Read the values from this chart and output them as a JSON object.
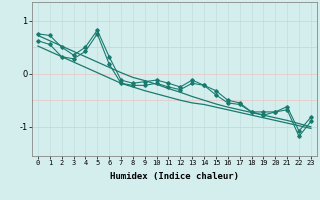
{
  "xlabel": "Humidex (Indice chaleur)",
  "bg_color": "#d4eeee",
  "plot_bg": "#d4eeee",
  "line_color": "#1a7a6e",
  "grid_color_v": "#c0dede",
  "grid_color_h": "#e8c8c8",
  "axis_color": "#888888",
  "xlim": [
    -0.5,
    23.5
  ],
  "ylim": [
    -1.55,
    1.35
  ],
  "yticks": [
    -1,
    0,
    1
  ],
  "xticks": [
    0,
    1,
    2,
    3,
    4,
    5,
    6,
    7,
    8,
    9,
    10,
    11,
    12,
    13,
    14,
    15,
    16,
    17,
    18,
    19,
    20,
    21,
    22,
    23
  ],
  "series1": [
    0.75,
    0.72,
    0.5,
    0.35,
    0.5,
    0.82,
    0.32,
    -0.12,
    -0.18,
    -0.15,
    -0.12,
    -0.18,
    -0.25,
    -0.12,
    -0.22,
    -0.32,
    -0.5,
    -0.55,
    -0.72,
    -0.72,
    -0.72,
    -0.62,
    -1.08,
    -0.82
  ],
  "series2": [
    0.62,
    0.55,
    0.32,
    0.28,
    0.42,
    0.75,
    0.18,
    -0.18,
    -0.22,
    -0.22,
    -0.18,
    -0.25,
    -0.3,
    -0.18,
    -0.22,
    -0.4,
    -0.55,
    -0.58,
    -0.72,
    -0.78,
    -0.72,
    -0.68,
    -1.18,
    -0.9
  ],
  "line1": [
    0.72,
    0.62,
    0.52,
    0.42,
    0.32,
    0.22,
    0.12,
    0.02,
    -0.07,
    -0.13,
    -0.2,
    -0.28,
    -0.35,
    -0.43,
    -0.5,
    -0.57,
    -0.63,
    -0.68,
    -0.73,
    -0.78,
    -0.83,
    -0.88,
    -0.94,
    -1.0
  ],
  "line2": [
    0.52,
    0.42,
    0.32,
    0.22,
    0.12,
    0.02,
    -0.08,
    -0.18,
    -0.25,
    -0.32,
    -0.38,
    -0.44,
    -0.5,
    -0.55,
    -0.58,
    -0.63,
    -0.68,
    -0.73,
    -0.78,
    -0.83,
    -0.88,
    -0.93,
    -0.98,
    -1.03
  ]
}
